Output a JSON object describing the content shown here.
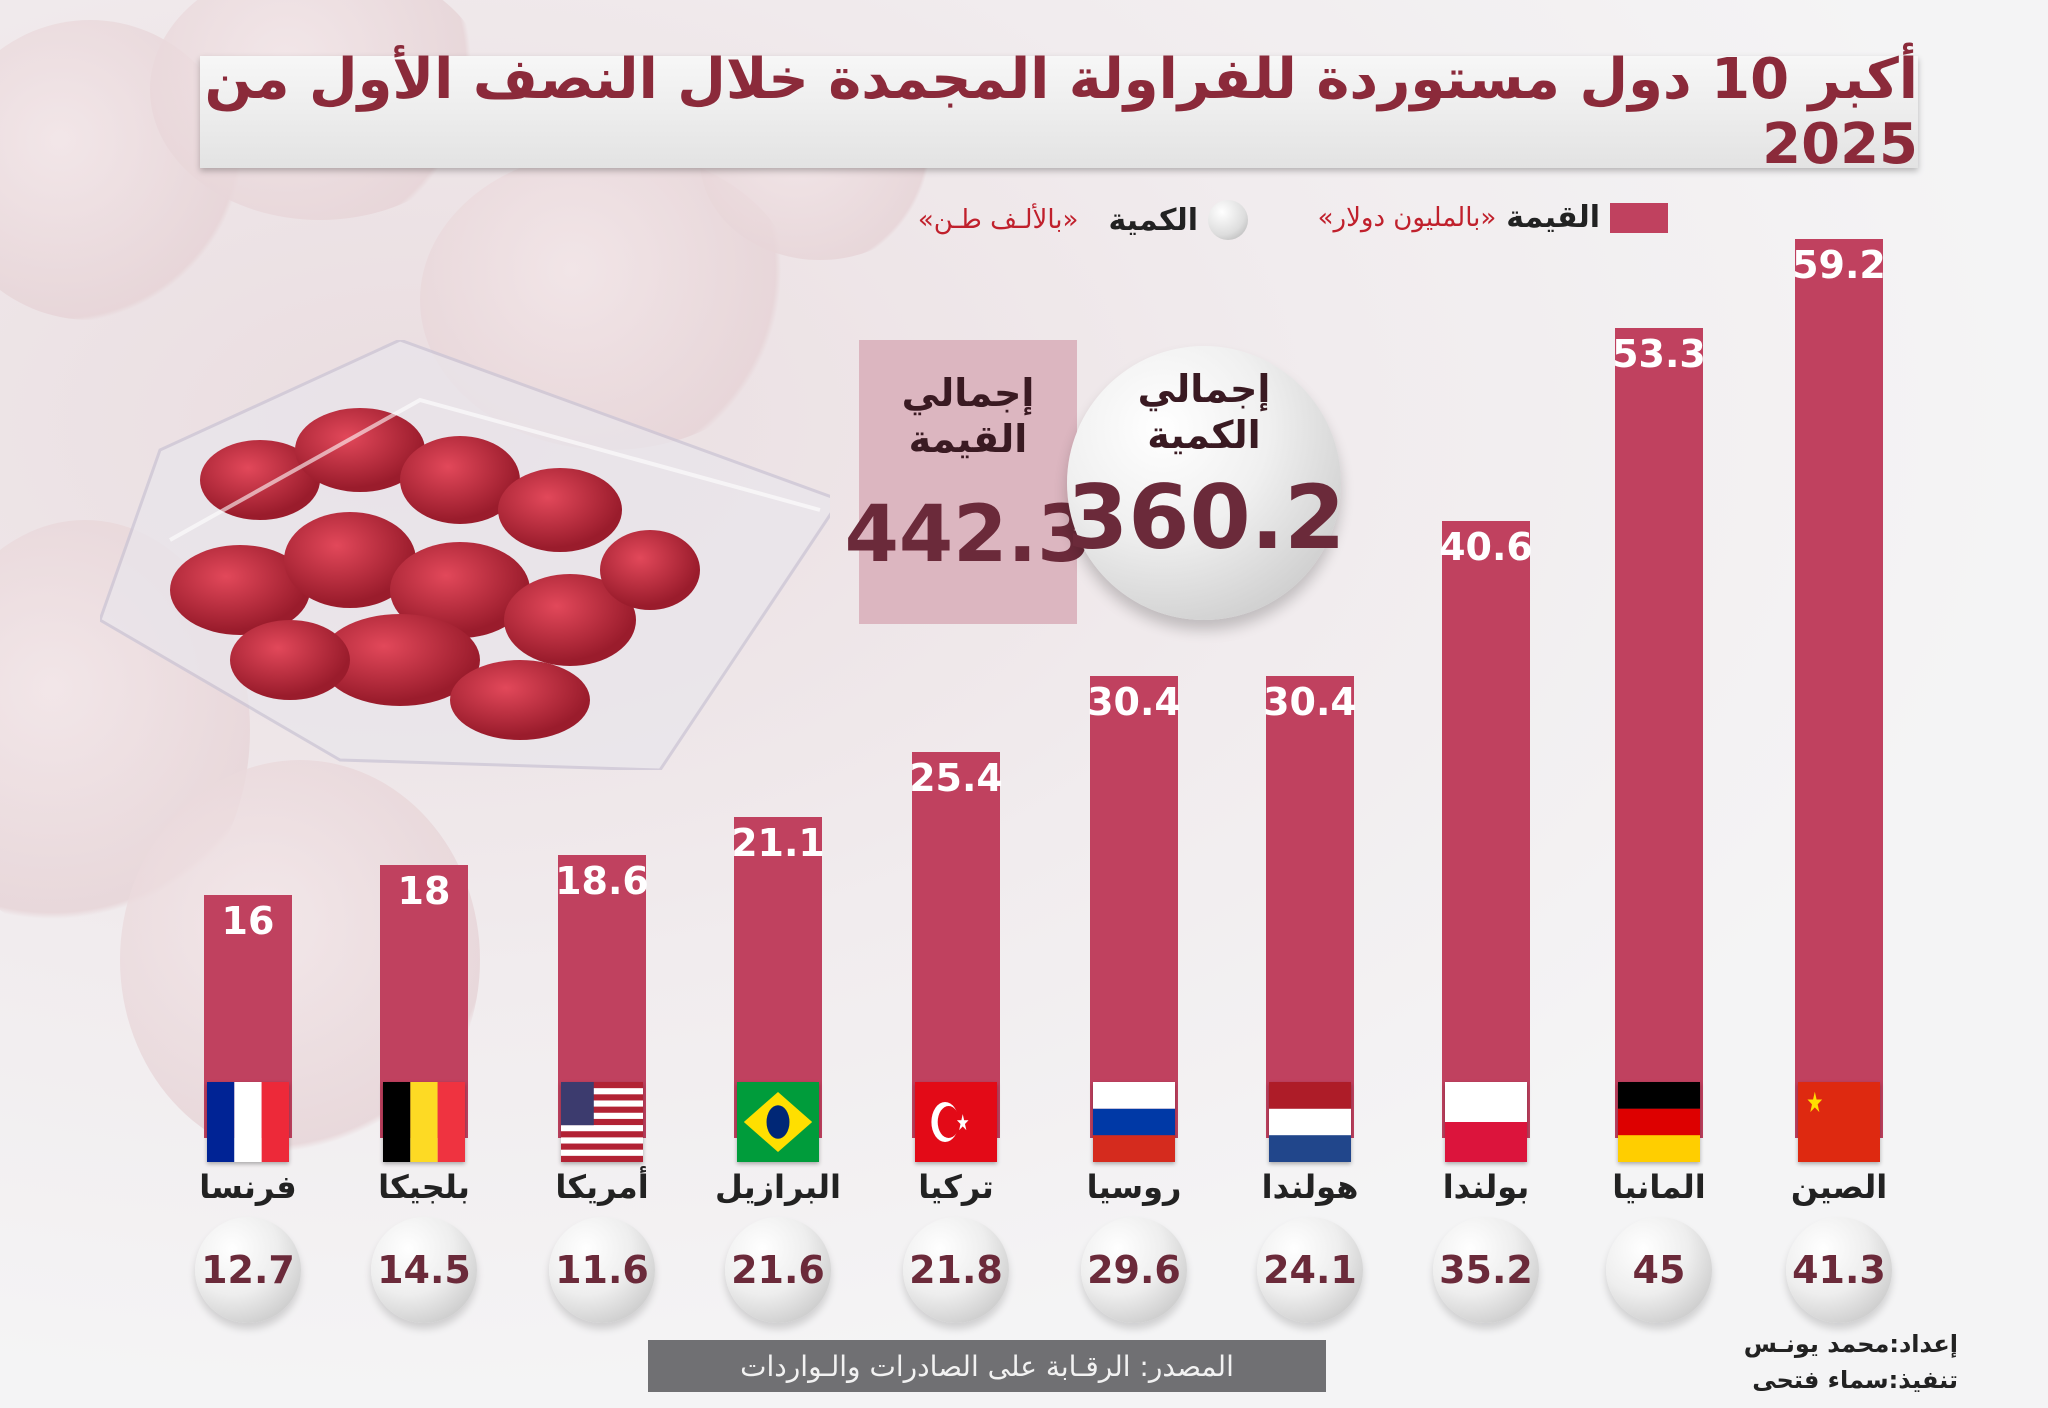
{
  "title": "أكبر 10 دول مستوردة للفراولة المجمدة خلال النصف الأول من 2025",
  "legend": {
    "value_label": "القيمة",
    "value_unit": "«بالمليون دولار»",
    "quantity_label": "الكمية",
    "quantity_unit": "«بالألـف طـن»"
  },
  "totals": {
    "value_label": "إجمالي القيمة",
    "value": "442.3",
    "quantity_label": "إجمالي الكمية",
    "quantity": "360.2"
  },
  "colors": {
    "bar": "#c0415f",
    "title": "#8b2a3a"
  },
  "chart_data": {
    "type": "bar",
    "title": "أكبر 10 دول مستوردة للفراولة المجمدة خلال النصف الأول من 2025",
    "categories": [
      "الصين",
      "المانيا",
      "بولندا",
      "هولندا",
      "روسيا",
      "تركيا",
      "البرازيل",
      "أمريكا",
      "بلجيكا",
      "فرنسا"
    ],
    "flags": [
      "china",
      "germany",
      "poland",
      "netherlands",
      "russia",
      "turkey",
      "brazil",
      "usa",
      "belgium",
      "france"
    ],
    "series": [
      {
        "name": "القيمة «بالمليون دولار»",
        "values": [
          59.2,
          53.3,
          40.6,
          30.4,
          30.4,
          25.4,
          21.1,
          18.6,
          18,
          16
        ],
        "labels": [
          "59.2",
          "53.3",
          "40.6",
          "30.4",
          "30.4",
          "25.4",
          "21.1",
          "18.6",
          "18",
          "16"
        ]
      },
      {
        "name": "الكمية «بالألـف طـن»",
        "values": [
          41.3,
          45,
          35.2,
          24.1,
          29.6,
          21.8,
          21.6,
          11.6,
          14.5,
          12.7
        ],
        "labels": [
          "41.3",
          "45",
          "35.2",
          "24.1",
          "29.6",
          "21.8",
          "21.6",
          "11.6",
          "14.5",
          "12.7"
        ]
      }
    ],
    "ylim": [
      0,
      60
    ],
    "grid": false,
    "legend_position": "top"
  },
  "footer": {
    "source": "المصدر: الرقـابة على الصادرات والـواردات",
    "prepared_by": "إعداد:محمد يونـس",
    "designed_by": "تنفيذ:سماء فتحى"
  }
}
